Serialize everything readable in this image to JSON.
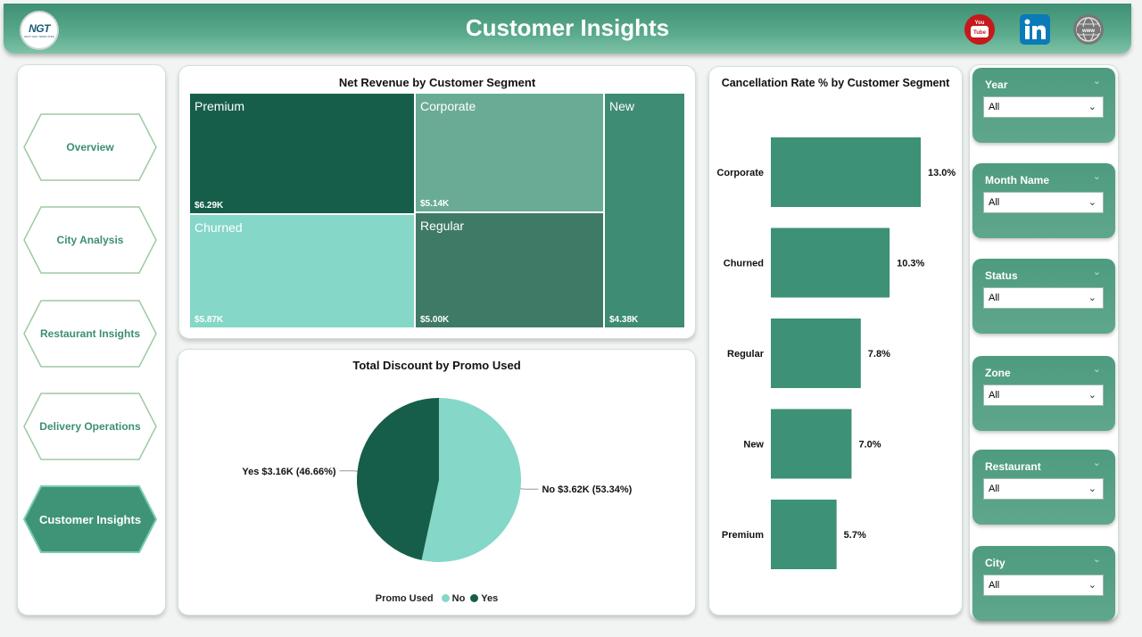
{
  "header": {
    "title": "Customer Insights",
    "logo_text": "NGT",
    "logo_subtext": "NEXT GEN TEMPLATES"
  },
  "social_icons": [
    "youtube-icon",
    "linkedin-icon",
    "web-globe-icon"
  ],
  "nav": {
    "items": [
      {
        "label": "Overview",
        "active": false
      },
      {
        "label": "City Analysis",
        "active": false
      },
      {
        "label": "Restaurant Insights",
        "active": false
      },
      {
        "label": "Delivery Operations",
        "active": false
      },
      {
        "label": "Customer Insights",
        "active": true
      }
    ]
  },
  "treemap": {
    "title": "Net Revenue by Customer Segment",
    "cells": [
      {
        "name": "Premium",
        "value": "$6.29K",
        "color": "#175e4a"
      },
      {
        "name": "Corporate",
        "value": "$5.14K",
        "color": "#6aab95"
      },
      {
        "name": "Churned",
        "value": "$5.87K",
        "color": "#85d7c8"
      },
      {
        "name": "Regular",
        "value": "$5.00K",
        "color": "#3f7a66"
      },
      {
        "name": "New",
        "value": "$4.38K",
        "color": "#3e8c73"
      }
    ]
  },
  "pie": {
    "title": "Total Discount by Promo Used",
    "legend_title": "Promo Used",
    "slices": [
      {
        "name": "No",
        "value": 3.62,
        "percent": 53.34,
        "label": "No $3.62K (53.34%)",
        "color": "#85d7c8"
      },
      {
        "name": "Yes",
        "value": 3.16,
        "percent": 46.66,
        "label": "Yes $3.16K (46.66%)",
        "color": "#175e4a"
      }
    ]
  },
  "chart_data": {
    "type": "bar",
    "title": "Cancellation Rate % by Customer Segment",
    "orientation": "horizontal",
    "categories": [
      "Corporate",
      "Churned",
      "Regular",
      "New",
      "Premium"
    ],
    "values": [
      13.0,
      10.3,
      7.8,
      7.0,
      5.7
    ],
    "value_labels": [
      "13.0%",
      "10.3%",
      "7.8%",
      "7.0%",
      "5.7%"
    ],
    "color": "#3d9176",
    "xlim": [
      0,
      13.0
    ]
  },
  "slicers": [
    {
      "label": "Year",
      "value": "All"
    },
    {
      "label": "Month Name",
      "value": "All"
    },
    {
      "label": "Status",
      "value": "All"
    },
    {
      "label": "Zone",
      "value": "All"
    },
    {
      "label": "Restaurant",
      "value": "All"
    },
    {
      "label": "City",
      "value": "All"
    }
  ]
}
